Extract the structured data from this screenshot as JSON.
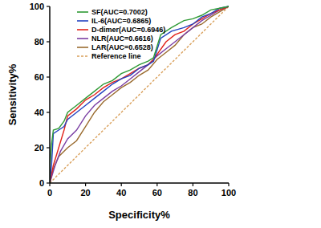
{
  "chart_data": {
    "type": "line",
    "x_label": "Specificity%",
    "y_label": "Sensitivity%",
    "xlim": [
      0,
      100
    ],
    "ylim": [
      0,
      100
    ],
    "xticks": [
      0,
      20,
      40,
      60,
      80,
      100
    ],
    "yticks": [
      0,
      20,
      40,
      60,
      80,
      100
    ],
    "grid": false,
    "legend": "upper left",
    "series": [
      {
        "name": "SF(AUC=0.7002)",
        "color": "#2f9a35",
        "x": [
          0,
          0,
          1,
          2,
          5,
          8,
          10,
          15,
          20,
          25,
          30,
          35,
          40,
          45,
          50,
          55,
          58,
          62,
          68,
          75,
          80,
          85,
          90,
          95,
          100
        ],
        "values": [
          0,
          8,
          22,
          30,
          31,
          35,
          40,
          44,
          48,
          52,
          56,
          58,
          62,
          64,
          67,
          69,
          71,
          84,
          88,
          92,
          93,
          95,
          98,
          99,
          100
        ]
      },
      {
        "name": "IL-6(AUC=0.6865)",
        "color": "#2342c0",
        "x": [
          0,
          1,
          2,
          5,
          8,
          10,
          15,
          20,
          25,
          30,
          35,
          40,
          45,
          50,
          55,
          58,
          62,
          68,
          75,
          80,
          85,
          90,
          95,
          100
        ],
        "values": [
          0,
          10,
          28,
          30,
          32,
          36,
          40,
          44,
          48,
          52,
          56,
          59,
          61,
          65,
          67,
          69,
          82,
          86,
          88,
          90,
          94,
          96,
          99,
          100
        ]
      },
      {
        "name": "D-dimer(AUC=0.6946)",
        "color": "#e2231a",
        "x": [
          0,
          2,
          5,
          8,
          10,
          15,
          20,
          25,
          30,
          35,
          40,
          45,
          50,
          55,
          58,
          65,
          70,
          75,
          80,
          85,
          90,
          95,
          100
        ],
        "values": [
          0,
          10,
          20,
          30,
          38,
          42,
          47,
          50,
          54,
          57,
          59,
          62,
          65,
          67,
          70,
          80,
          84,
          86,
          90,
          93,
          96,
          98,
          100
        ]
      },
      {
        "name": "NLR(AUC=0.6616)",
        "color": "#7a3ea3",
        "x": [
          0,
          3,
          6,
          10,
          15,
          20,
          25,
          30,
          35,
          40,
          45,
          50,
          55,
          60,
          65,
          70,
          75,
          80,
          85,
          90,
          95,
          100
        ],
        "values": [
          0,
          10,
          18,
          25,
          30,
          38,
          44,
          48,
          52,
          55,
          59,
          63,
          67,
          72,
          76,
          80,
          84,
          88,
          92,
          95,
          98,
          100
        ]
      },
      {
        "name": "LAR(AUC=0.6528)",
        "color": "#9a6b2f",
        "x": [
          0,
          2,
          5,
          10,
          15,
          20,
          25,
          30,
          35,
          40,
          45,
          50,
          55,
          60,
          65,
          70,
          75,
          80,
          85,
          90,
          95,
          100
        ],
        "values": [
          0,
          8,
          15,
          20,
          24,
          32,
          40,
          46,
          50,
          54,
          57,
          61,
          64,
          70,
          74,
          78,
          84,
          88,
          90,
          94,
          97,
          100
        ]
      },
      {
        "name": "Reference line",
        "color": "#d9a05b",
        "line_style": "dashed",
        "x": [
          0,
          100
        ],
        "values": [
          0,
          100
        ]
      }
    ]
  }
}
